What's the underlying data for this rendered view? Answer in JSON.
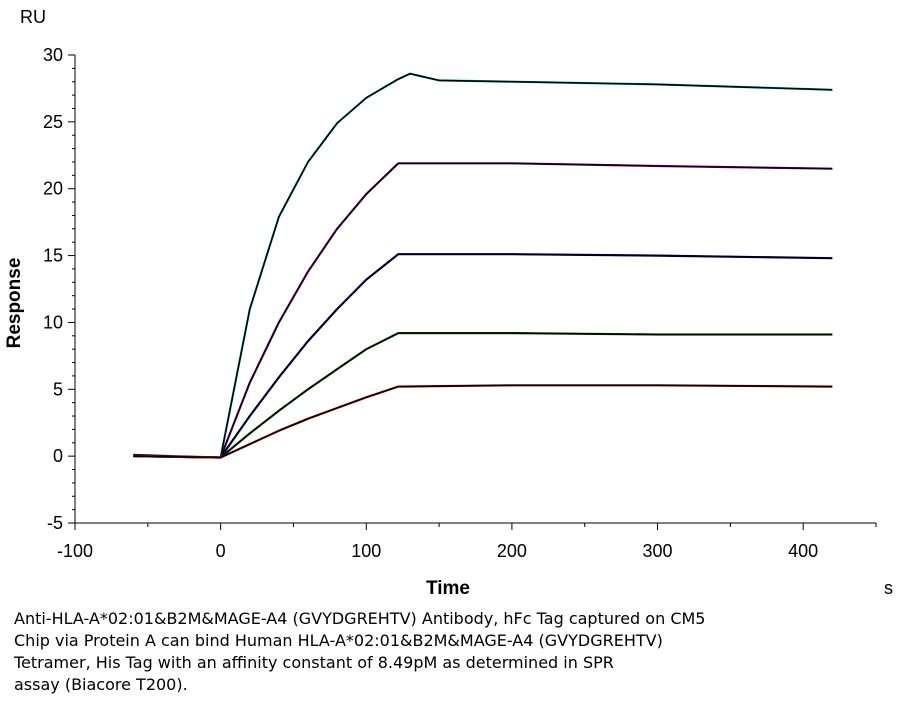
{
  "chart_data": {
    "type": "line",
    "ylabel": "Response",
    "xlabel": "Time",
    "y_unit": "RU",
    "x_unit": "s",
    "xlim": [
      -100,
      450
    ],
    "ylim": [
      -5,
      30
    ],
    "x_ticks": [
      -100,
      0,
      100,
      200,
      300,
      400
    ],
    "y_ticks": [
      -5,
      0,
      5,
      10,
      15,
      20,
      25,
      30
    ],
    "grid": false,
    "legend": "none",
    "association_end": 122,
    "series": [
      {
        "color": "#00c8c8",
        "fit_color": "#000000",
        "points": [
          [
            -60,
            0.1
          ],
          [
            0,
            -0.1
          ],
          [
            20,
            11.0
          ],
          [
            40,
            17.9
          ],
          [
            60,
            22.0
          ],
          [
            80,
            24.9
          ],
          [
            100,
            26.8
          ],
          [
            122,
            28.2
          ],
          [
            130,
            28.6
          ],
          [
            150,
            28.1
          ],
          [
            200,
            28.0
          ],
          [
            300,
            27.8
          ],
          [
            420,
            27.4
          ]
        ]
      },
      {
        "color": "#c000c0",
        "fit_color": "#000000",
        "points": [
          [
            -60,
            0.0
          ],
          [
            0,
            -0.1
          ],
          [
            20,
            5.5
          ],
          [
            40,
            10.0
          ],
          [
            60,
            13.8
          ],
          [
            80,
            17.0
          ],
          [
            100,
            19.6
          ],
          [
            122,
            21.9
          ],
          [
            150,
            21.9
          ],
          [
            200,
            21.9
          ],
          [
            300,
            21.7
          ],
          [
            420,
            21.5
          ]
        ]
      },
      {
        "color": "#0000c8",
        "fit_color": "#000000",
        "points": [
          [
            -60,
            0.0
          ],
          [
            0,
            -0.1
          ],
          [
            20,
            3.0
          ],
          [
            40,
            5.9
          ],
          [
            60,
            8.6
          ],
          [
            80,
            11.0
          ],
          [
            100,
            13.2
          ],
          [
            122,
            15.1
          ],
          [
            200,
            15.1
          ],
          [
            300,
            15.0
          ],
          [
            420,
            14.8
          ]
        ]
      },
      {
        "color": "#008000",
        "fit_color": "#000000",
        "points": [
          [
            -60,
            0.0
          ],
          [
            0,
            -0.1
          ],
          [
            20,
            1.7
          ],
          [
            40,
            3.4
          ],
          [
            60,
            5.0
          ],
          [
            80,
            6.5
          ],
          [
            100,
            8.0
          ],
          [
            122,
            9.2
          ],
          [
            200,
            9.2
          ],
          [
            300,
            9.1
          ],
          [
            420,
            9.1
          ]
        ]
      },
      {
        "color": "#e00000",
        "fit_color": "#000000",
        "points": [
          [
            -60,
            0.0
          ],
          [
            0,
            -0.1
          ],
          [
            20,
            0.9
          ],
          [
            40,
            1.9
          ],
          [
            60,
            2.8
          ],
          [
            80,
            3.6
          ],
          [
            100,
            4.4
          ],
          [
            122,
            5.2
          ],
          [
            200,
            5.3
          ],
          [
            300,
            5.3
          ],
          [
            420,
            5.2
          ]
        ]
      }
    ]
  },
  "caption": "Anti-HLA-A*02:01&B2M&MAGE-A4 (GVYDGREHTV) Antibody, hFc Tag captured on CM5\nChip via Protein A can bind Human HLA-A*02:01&B2M&MAGE-A4 (GVYDGREHTV)\nTetramer, His Tag with an affinity constant of 8.49pM as determined in SPR\nassay (Biacore T200)."
}
